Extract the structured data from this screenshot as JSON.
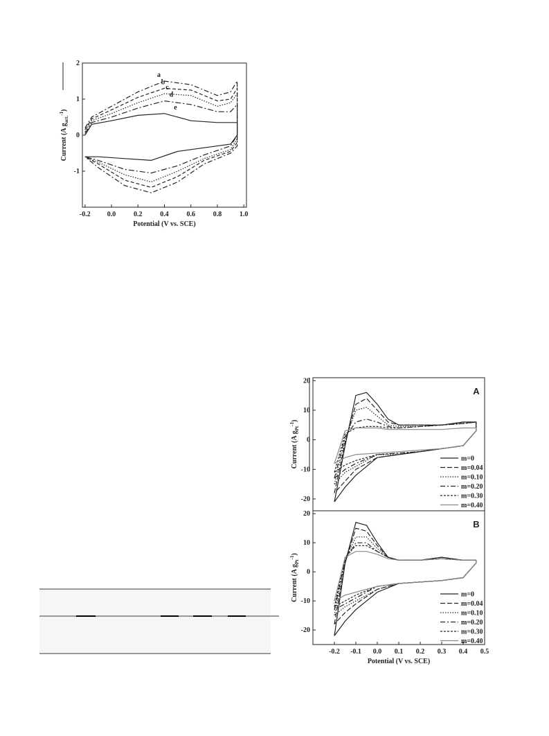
{
  "chart_data": [
    {
      "type": "line",
      "xlabel": "Potential (V vs. SCE)",
      "ylabel": [
        "Current (A g",
        "act.",
        "-1",
        ")"
      ],
      "xlim": [
        -0.22,
        1.02
      ],
      "xticks": [
        -0.2,
        {
          "value": 0,
          "label": "0.0"
        },
        0.2,
        0.4,
        0.6,
        0.8,
        {
          "value": 1,
          "label": "1.0"
        }
      ],
      "ylim": [
        -2,
        2
      ],
      "yticks": [
        -1,
        0,
        1,
        2
      ],
      "x": [
        -0.2,
        -0.15,
        0,
        0.2,
        0.4,
        0.6,
        0.8,
        0.9,
        0.95,
        0.95,
        0.9,
        0.7,
        0.5,
        0.3,
        0.1,
        -0.1,
        -0.2
      ],
      "series": [
        {
          "name": "a",
          "color": "#222",
          "dash": "7,3,2,3",
          "values": [
            0.2,
            0.5,
            0.8,
            1.2,
            1.5,
            1.4,
            1.1,
            1.2,
            1.5,
            -0.3,
            -0.5,
            -0.8,
            -1.3,
            -1.6,
            -1.4,
            -0.9,
            -0.6
          ]
        },
        {
          "name": "b",
          "color": "#222",
          "dash": "5,3",
          "values": [
            0.15,
            0.45,
            0.7,
            1.05,
            1.3,
            1.25,
            0.95,
            1.0,
            1.3,
            -0.2,
            -0.45,
            -0.7,
            -1.15,
            -1.45,
            -1.25,
            -0.8,
            -0.6
          ]
        },
        {
          "name": "c",
          "color": "#222",
          "dash": "1.5,2",
          "values": [
            0.1,
            0.4,
            0.6,
            0.9,
            1.15,
            1.1,
            0.8,
            0.9,
            1.15,
            -0.1,
            -0.4,
            -0.65,
            -1.0,
            -1.3,
            -1.1,
            -0.75,
            -0.6
          ]
        },
        {
          "name": "d",
          "color": "#222",
          "dash": "8,3,2,3",
          "values": [
            0.05,
            0.35,
            0.5,
            0.75,
            0.95,
            0.85,
            0.65,
            0.65,
            0.85,
            0,
            -0.3,
            -0.55,
            -0.85,
            -1.05,
            -0.95,
            -0.7,
            -0.6
          ]
        },
        {
          "name": "e",
          "color": "#222",
          "dash": "",
          "values": [
            0,
            0.3,
            0.4,
            0.55,
            0.6,
            0.4,
            0.35,
            0.35,
            0.35,
            0,
            -0.25,
            -0.35,
            -0.45,
            -0.7,
            -0.65,
            -0.6,
            -0.6
          ]
        }
      ]
    },
    {
      "type": "line",
      "panel": "A",
      "ylabel": [
        "Current (A g",
        "Pt",
        "-1",
        ")"
      ],
      "legend": "lower right",
      "xlim": [
        -0.3,
        0.5
      ],
      "ylim": [
        -24,
        21
      ],
      "yticks": [
        -20,
        -10,
        0,
        10,
        20
      ],
      "x": [
        -0.2,
        -0.15,
        -0.1,
        -0.05,
        0,
        0.05,
        0.1,
        0.2,
        0.3,
        0.4,
        0.46,
        0.46,
        0.4,
        0.3,
        0.2,
        0.1,
        0,
        -0.1,
        -0.15,
        -0.2
      ],
      "series": [
        {
          "name": "m=0",
          "color": "#222",
          "dash": "",
          "values": [
            -21,
            -2,
            15,
            16,
            12,
            7,
            5,
            5,
            5,
            6,
            6,
            3,
            -2,
            -3,
            -4,
            -5,
            -6,
            -12,
            -16,
            -21
          ]
        },
        {
          "name": "m=0.04",
          "color": "#222",
          "dash": "7,3",
          "values": [
            -18,
            -1,
            12,
            14,
            10,
            6,
            5,
            5,
            5,
            6,
            6,
            3,
            -2,
            -3,
            -4,
            -5,
            -6,
            -10,
            -14,
            -18
          ]
        },
        {
          "name": "m=0.10",
          "color": "#222",
          "dash": "1.5,2",
          "values": [
            -15,
            0,
            10,
            11,
            8,
            5,
            4.5,
            4.5,
            5,
            5.5,
            6,
            3,
            -2,
            -3,
            -4,
            -5,
            -5,
            -9,
            -11,
            -15
          ]
        },
        {
          "name": "m=0.20",
          "color": "#222",
          "dash": "7,3,2,3",
          "values": [
            -13,
            1,
            6,
            7,
            6,
            4.5,
            4,
            4.5,
            5,
            5.5,
            6,
            3,
            -2,
            -3,
            -4,
            -4.5,
            -5,
            -8,
            -10,
            -13
          ]
        },
        {
          "name": "m=0.30",
          "color": "#222",
          "dash": "3,2",
          "values": [
            -11,
            2,
            4,
            4.5,
            4.5,
            4,
            4,
            4.5,
            5,
            5.5,
            6,
            3,
            -2,
            -3,
            -4,
            -4.5,
            -5,
            -7,
            -8.5,
            -11
          ]
        },
        {
          "name": "m=0.40",
          "color": "#888",
          "dash": "",
          "values": [
            -8,
            3,
            4,
            4,
            4,
            3.5,
            3.5,
            3.5,
            3.5,
            4,
            4,
            3,
            -2,
            -3,
            -3.5,
            -4,
            -4.5,
            -5,
            -6,
            -8
          ]
        }
      ]
    },
    {
      "type": "line",
      "panel": "B",
      "xlabel": "Potential (V vs. SCE)",
      "ylabel": [
        "Current (A g",
        "Pt",
        "-1",
        ")"
      ],
      "legend": "lower right",
      "xlim": [
        -0.3,
        0.5
      ],
      "xticks": [
        -0.2,
        -0.1,
        {
          "value": 0,
          "label": "0.0"
        },
        0.1,
        0.2,
        0.3,
        0.4,
        0.5
      ],
      "ylim": [
        -25,
        21
      ],
      "yticks": [
        -20,
        -10,
        0,
        10,
        20
      ],
      "x": [
        -0.2,
        -0.15,
        -0.1,
        -0.05,
        0,
        0.05,
        0.1,
        0.2,
        0.3,
        0.4,
        0.46,
        0.46,
        0.4,
        0.3,
        0.2,
        0.1,
        0,
        -0.1,
        -0.15,
        -0.2
      ],
      "series": [
        {
          "name": "m=0",
          "color": "#222",
          "dash": "",
          "values": [
            -22,
            3,
            17,
            16,
            10,
            5,
            4,
            4,
            5,
            4,
            4,
            3,
            -2,
            -3,
            -3.5,
            -4,
            -7,
            -13,
            -17,
            -22
          ]
        },
        {
          "name": "m=0.04",
          "color": "#222",
          "dash": "7,3",
          "values": [
            -18,
            3,
            15,
            14,
            9,
            5,
            4,
            4,
            5,
            4,
            4,
            3,
            -2,
            -3,
            -3.5,
            -4,
            -6,
            -11,
            -14,
            -18
          ]
        },
        {
          "name": "m=0.10",
          "color": "#222",
          "dash": "1.5,2",
          "values": [
            -15,
            4,
            12,
            12,
            8,
            5,
            4,
            4,
            4.5,
            4,
            4,
            3,
            -2,
            -3,
            -3.5,
            -4,
            -6,
            -10,
            -12,
            -15
          ]
        },
        {
          "name": "m=0.20",
          "color": "#222",
          "dash": "7,3,2,3",
          "values": [
            -13,
            4,
            10,
            10,
            7,
            5,
            4,
            4,
            4.5,
            4,
            4,
            3,
            -2,
            -3,
            -3.5,
            -4,
            -5,
            -9,
            -11,
            -13
          ]
        },
        {
          "name": "m=0.30",
          "color": "#222",
          "dash": "3,2",
          "values": [
            -12,
            5,
            9,
            9,
            7,
            5,
            4,
            4,
            4.5,
            4,
            4,
            3,
            -2,
            -3,
            -3.5,
            -4,
            -5,
            -8,
            -10,
            -12
          ]
        },
        {
          "name": "m=0.40",
          "color": "#888",
          "dash": "",
          "values": [
            -10,
            5,
            7,
            7,
            6,
            4.5,
            4,
            4,
            4.5,
            4,
            4,
            3,
            -2,
            -3,
            -3.5,
            -4,
            -5,
            -7,
            -8,
            -10
          ]
        }
      ]
    }
  ]
}
